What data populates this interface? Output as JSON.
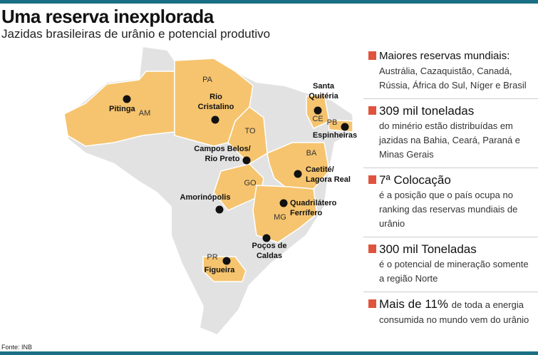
{
  "header": {
    "title": "Uma reserva inexplorada",
    "subtitle": "Jazidas brasileiras de urânio e potencial produtivo"
  },
  "map": {
    "states": [
      "AM",
      "PA",
      "TO",
      "GO",
      "BA",
      "CE",
      "PB",
      "MG",
      "PR"
    ],
    "sites": [
      {
        "lines": [
          "Pitinga"
        ]
      },
      {
        "lines": [
          "Rio",
          "Cristalino"
        ]
      },
      {
        "lines": [
          "Santa",
          "Quitéria"
        ]
      },
      {
        "lines": [
          "Espinheiras"
        ]
      },
      {
        "lines": [
          "Campos Belos/",
          "Rio Preto"
        ]
      },
      {
        "lines": [
          "Caetité/",
          "Lagora Real"
        ]
      },
      {
        "lines": [
          "Quadrilátero",
          "Ferrífero"
        ]
      },
      {
        "lines": [
          "Amorinópolis"
        ]
      },
      {
        "lines": [
          "Poços de",
          "Caldas"
        ]
      },
      {
        "lines": [
          "Figueira"
        ]
      }
    ]
  },
  "facts": [
    {
      "heading": "Maiores reservas mundiais:",
      "lines": [
        "Austrália, Cazaquistão, Canadá,",
        "Rússia, África do Sul, Níger e Brasil"
      ]
    },
    {
      "heading": "309 mil toneladas",
      "lines": [
        "do minério estão distribuídas em",
        "jazidas na Bahia, Ceará, Paraná e",
        "Minas Gerais"
      ]
    },
    {
      "heading": "7ª Colocação",
      "lines": [
        "é a posição que o país ocupa no",
        "ranking das reservas mundiais de",
        "urânio"
      ]
    },
    {
      "heading": "300 mil Toneladas",
      "lines": [
        "é o potencial de mineração somente",
        "a região Norte"
      ]
    },
    {
      "heading": "Mais de 11%",
      "inline": "de toda a energia",
      "lines": [
        "consumida no mundo vem do urânio"
      ]
    }
  ],
  "source": "Fonte: INB"
}
